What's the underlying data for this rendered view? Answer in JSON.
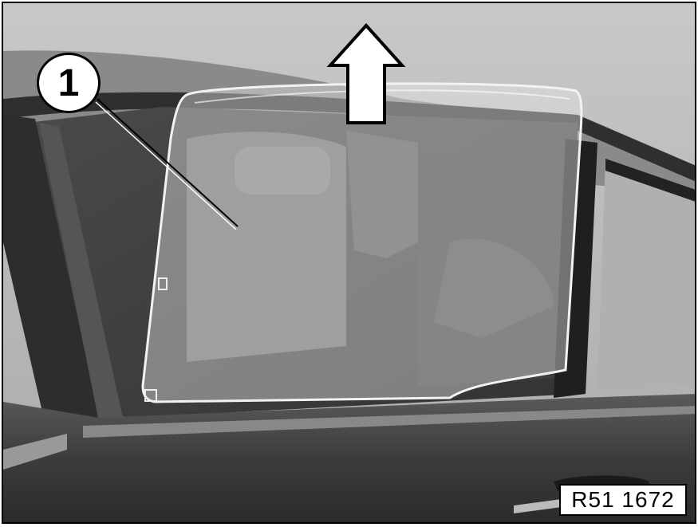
{
  "figure": {
    "callout_number": "1",
    "reference_code": "R51 1672"
  },
  "icons": {
    "arrow": "arrow-up-icon",
    "leader": "leader-line"
  }
}
